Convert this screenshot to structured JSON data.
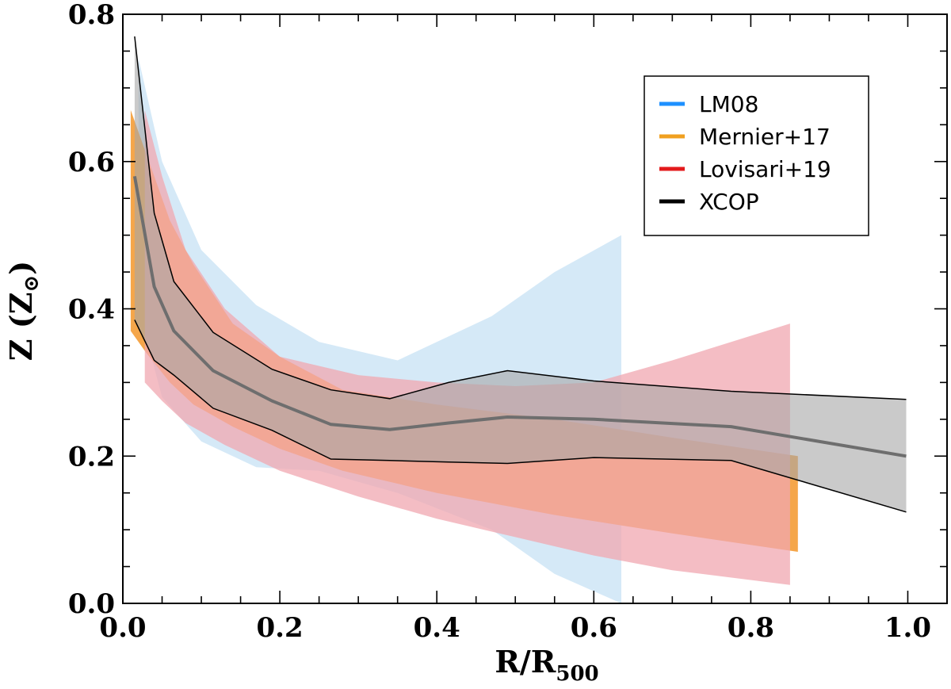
{
  "chart_data": {
    "type": "area",
    "title": "",
    "xlabel": {
      "base": "R/R",
      "subscript": "500"
    },
    "ylabel": {
      "base": "Z (Z",
      "subscript": "⊙",
      "close": ")"
    },
    "xlim": [
      0.0,
      1.05
    ],
    "ylim": [
      0.0,
      0.8
    ],
    "x_ticks": [
      0.0,
      0.2,
      0.4,
      0.6,
      0.8,
      1.0
    ],
    "x_tick_labels": [
      "0.0",
      "0.2",
      "0.4",
      "0.6",
      "0.8",
      "1.0"
    ],
    "y_ticks": [
      0.0,
      0.2,
      0.4,
      0.6,
      0.8
    ],
    "y_tick_labels": [
      "0.0",
      "0.2",
      "0.4",
      "0.6",
      "0.8"
    ],
    "legend_position": "top-right",
    "series": [
      {
        "name": "LM08",
        "color": "#1e90ff",
        "fill": "#d5e9f7",
        "fill_opacity": 1,
        "x": [
          0.02,
          0.05,
          0.1,
          0.17,
          0.25,
          0.35,
          0.47,
          0.55,
          0.635
        ],
        "upper": [
          0.74,
          0.6,
          0.48,
          0.405,
          0.355,
          0.33,
          0.39,
          0.45,
          0.5
        ],
        "lower": [
          0.4,
          0.28,
          0.22,
          0.185,
          0.18,
          0.15,
          0.1,
          0.04,
          0.0
        ]
      },
      {
        "name": "Mernier+17",
        "color": "#f0a020",
        "fill": "#f5a64a",
        "fill_opacity": 1,
        "x": [
          0.01,
          0.03,
          0.06,
          0.09,
          0.14,
          0.2,
          0.28,
          0.4,
          0.55,
          0.7,
          0.86
        ],
        "upper": [
          0.67,
          0.61,
          0.52,
          0.46,
          0.38,
          0.335,
          0.29,
          0.27,
          0.25,
          0.225,
          0.2
        ],
        "lower": [
          0.37,
          0.34,
          0.3,
          0.27,
          0.24,
          0.21,
          0.18,
          0.15,
          0.12,
          0.095,
          0.07
        ]
      },
      {
        "name": "Lovisari+19",
        "color": "#e31a1c",
        "fill": "#f0a7b0",
        "fill_opacity": 0.75,
        "x": [
          0.028,
          0.05,
          0.08,
          0.13,
          0.2,
          0.3,
          0.4,
          0.5,
          0.6,
          0.7,
          0.85
        ],
        "upper": [
          0.67,
          0.58,
          0.48,
          0.4,
          0.335,
          0.31,
          0.3,
          0.295,
          0.3,
          0.33,
          0.38
        ],
        "lower": [
          0.3,
          0.275,
          0.245,
          0.215,
          0.18,
          0.145,
          0.115,
          0.09,
          0.065,
          0.045,
          0.025
        ]
      },
      {
        "name": "XCOP",
        "color": "#000000",
        "fill": "#a6a6a6",
        "fill_opacity": 0.6,
        "mean_color": "#6e6e6e",
        "x": [
          0.015,
          0.04,
          0.065,
          0.115,
          0.19,
          0.265,
          0.34,
          0.415,
          0.49,
          0.6,
          0.775,
          0.998
        ],
        "mean": [
          0.58,
          0.43,
          0.37,
          0.316,
          0.275,
          0.243,
          0.236,
          0.245,
          0.253,
          0.25,
          0.24,
          0.2
        ],
        "upper": [
          0.77,
          0.53,
          0.437,
          0.368,
          0.318,
          0.29,
          0.278,
          0.3,
          0.316,
          0.302,
          0.288,
          0.277
        ],
        "lower": [
          0.385,
          0.33,
          0.31,
          0.265,
          0.235,
          0.196,
          0.194,
          0.192,
          0.19,
          0.198,
          0.194,
          0.124
        ]
      }
    ]
  }
}
